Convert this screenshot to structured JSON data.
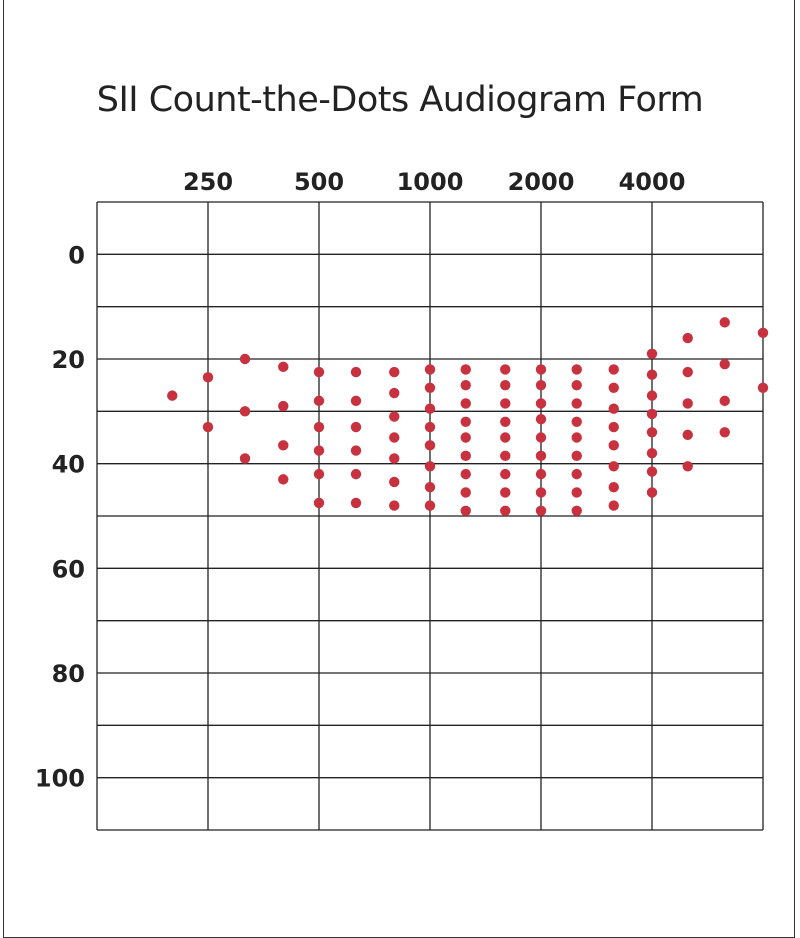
{
  "chart_data": {
    "type": "scatter",
    "title": "SII Count-the-Dots Audiogram Form",
    "x_scale": "log2",
    "x_ticks": [
      250,
      500,
      1000,
      2000,
      4000
    ],
    "x_tick_labels": [
      "250",
      "500",
      "1000",
      "2000",
      "4000"
    ],
    "xlim": [
      125,
      8000
    ],
    "y_ticks": [
      0,
      20,
      40,
      60,
      80,
      100
    ],
    "y_tick_labels": [
      "0",
      "20",
      "40",
      "60",
      "80",
      "100"
    ],
    "ylim": [
      -10,
      110
    ],
    "y_inverted": true,
    "grid": true,
    "dot_color": "#c8323f",
    "columns": [
      {
        "freq": 200,
        "levels": [
          27
        ]
      },
      {
        "freq": 250,
        "levels": [
          23.5,
          33
        ]
      },
      {
        "freq": 315,
        "levels": [
          20,
          30,
          39
        ]
      },
      {
        "freq": 400,
        "levels": [
          21.5,
          29,
          36.5,
          43
        ]
      },
      {
        "freq": 500,
        "levels": [
          22.5,
          28,
          33,
          37.5,
          42,
          47.5
        ]
      },
      {
        "freq": 630,
        "levels": [
          22.5,
          28,
          33,
          37.5,
          42,
          47.5
        ]
      },
      {
        "freq": 800,
        "levels": [
          22.5,
          26.5,
          31,
          35,
          39,
          43.5,
          48
        ]
      },
      {
        "freq": 1000,
        "levels": [
          22,
          25.5,
          29.5,
          33,
          36.5,
          40.5,
          44.5,
          48
        ]
      },
      {
        "freq": 1250,
        "levels": [
          22,
          25,
          28.5,
          32,
          35,
          38.5,
          42,
          45.5,
          49
        ]
      },
      {
        "freq": 1600,
        "levels": [
          22,
          25,
          28.5,
          32,
          35,
          38.5,
          42,
          45.5,
          49
        ]
      },
      {
        "freq": 2000,
        "levels": [
          22,
          25,
          28.5,
          31.5,
          35,
          38.5,
          42,
          45.5,
          49
        ]
      },
      {
        "freq": 2500,
        "levels": [
          22,
          25,
          28.5,
          32,
          35,
          38.5,
          42,
          45.5,
          49
        ]
      },
      {
        "freq": 3150,
        "levels": [
          22,
          25.5,
          29.5,
          33,
          36.5,
          40.5,
          44.5,
          48
        ]
      },
      {
        "freq": 4000,
        "levels": [
          19,
          23,
          27,
          30.5,
          34,
          38,
          41.5,
          45.5
        ]
      },
      {
        "freq": 5000,
        "levels": [
          16,
          22.5,
          28.5,
          34.5,
          40.5
        ]
      },
      {
        "freq": 6300,
        "levels": [
          13,
          21,
          28,
          34
        ]
      },
      {
        "freq": 8000,
        "levels": [
          15,
          25.5
        ]
      }
    ]
  }
}
